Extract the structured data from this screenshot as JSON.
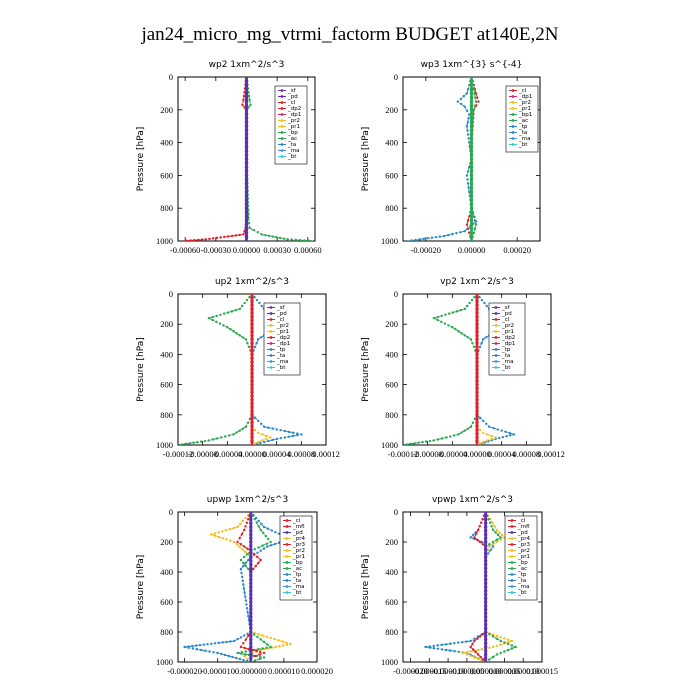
{
  "figure": {
    "title": "jan24_micro_mg_vtrmi_factorm  BUDGET at140E,2N"
  },
  "colors": {
    "sf": "#7d2fa8",
    "pd": "#5a2fb0",
    "cl": "#e0202a",
    "dp2": "#e0202a",
    "dp1": "#d8267a",
    "pr2": "#f0c020",
    "pr1": "#f0c020",
    "bp1": "#28a850",
    "ac": "#28a850",
    "bp": "#28a850",
    "tp": "#2a88c8",
    "ta": "#2a88c8",
    "ma": "#4a90e0",
    "bt": "#38c8d8",
    "mfl": "#e0202a",
    "pr4": "#f0c020",
    "pr3": "#e0202a"
  },
  "chart_data": [
    {
      "type": "line",
      "title": "wp2   1xm^2/s^3",
      "ylabel": "Pressure  [hPa]",
      "ylim": [
        1000,
        0
      ],
      "xlim": [
        -0.00067,
        0.00067
      ],
      "xticks": [
        -0.0006,
        -0.0003,
        0.0,
        0.0003,
        0.0006
      ],
      "xticklabels": [
        "-0.00060",
        "-0.00030",
        "0.00000",
        "0.00030",
        "0.00060"
      ],
      "yticks": [
        0,
        200,
        400,
        600,
        800,
        1000
      ],
      "legend": [
        "_sf",
        "_pd",
        "_cl",
        "_dp2",
        "_dp1",
        "_pr2",
        "_pr1",
        "_bp",
        "_ac",
        "_ta",
        "_ma",
        "_bt"
      ],
      "series": [
        {
          "name": "_sf",
          "key": "sf",
          "x": [
            0,
            0,
            0,
            0,
            0,
            0,
            0
          ],
          "y": [
            0,
            150,
            300,
            500,
            700,
            900,
            1000
          ]
        },
        {
          "name": "_cl",
          "key": "cl",
          "x": [
            0,
            -3e-05,
            -4e-05,
            0,
            0,
            0,
            -1e-05,
            -3e-05,
            -0.0004,
            -0.00062
          ],
          "y": [
            0,
            140,
            170,
            200,
            500,
            860,
            920,
            960,
            990,
            1000
          ]
        },
        {
          "name": "_ac",
          "key": "ac",
          "x": [
            0,
            3e-05,
            4e-05,
            0,
            0,
            2e-05,
            3e-05,
            0.00015,
            0.0004,
            0.00065
          ],
          "y": [
            0,
            140,
            170,
            200,
            500,
            860,
            920,
            960,
            990,
            1000
          ]
        },
        {
          "name": "_pd",
          "key": "pd",
          "x": [
            0,
            0,
            0,
            0,
            0,
            0,
            0
          ],
          "y": [
            0,
            150,
            300,
            500,
            700,
            900,
            1000
          ]
        }
      ]
    },
    {
      "type": "line",
      "title": "wp3   1xm^{3} s^{-4}",
      "ylabel": "Pressure  [hPa]",
      "ylim": [
        1000,
        0
      ],
      "xlim": [
        -0.0003,
        0.0003
      ],
      "xticks": [
        -0.0002,
        0.0,
        0.0002
      ],
      "xticklabels": [
        "-0.00020",
        "0.00000",
        "0.00020"
      ],
      "yticks": [
        0,
        200,
        400,
        600,
        800,
        1000
      ],
      "legend": [
        "_cl",
        "_dp1",
        "_pr2",
        "_pr1",
        "_bp1",
        "_ac",
        "_tp",
        "_ta",
        "_ma",
        "_bt"
      ],
      "series": [
        {
          "name": "_tp",
          "key": "tp",
          "x": [
            0,
            -2e-05,
            -6e-05,
            -3e-05,
            -1e-05,
            -2e-05,
            -1e-05,
            0,
            -2e-05,
            0,
            2e-05,
            -3e-05,
            -0.00012,
            -0.00028
          ],
          "y": [
            0,
            100,
            150,
            180,
            230,
            300,
            400,
            500,
            600,
            800,
            880,
            940,
            970,
            1000
          ]
        },
        {
          "name": "_cl",
          "key": "cl",
          "x": [
            0,
            3e-05,
            1e-05,
            0,
            0,
            -2e-05,
            0
          ],
          "y": [
            0,
            150,
            200,
            400,
            800,
            900,
            1000
          ]
        },
        {
          "name": "_ac",
          "key": "ac",
          "x": [
            0,
            2e-05,
            1e-05,
            0,
            0,
            2e-05,
            0
          ],
          "y": [
            0,
            150,
            200,
            400,
            800,
            900,
            1000
          ]
        },
        {
          "name": "_bp1",
          "key": "bp1",
          "x": [
            0,
            0,
            0,
            0,
            0,
            0,
            0
          ],
          "y": [
            0,
            150,
            300,
            500,
            700,
            900,
            1000
          ]
        }
      ]
    },
    {
      "type": "line",
      "title": "up2   1xm^2/s^3",
      "ylabel": "Pressure  [hPa]",
      "ylim": [
        1000,
        0
      ],
      "xlim": [
        -0.00012,
        0.00012
      ],
      "xticks": [
        -0.00012,
        -8e-05,
        -4e-05,
        0.0,
        4e-05,
        8e-05,
        0.00012
      ],
      "xticklabels": [
        "-0.00012",
        "-0.00008",
        "-0.00004",
        "0.00000",
        "0.00004",
        "0.00008",
        "0.00012"
      ],
      "yticks": [
        0,
        200,
        400,
        600,
        800,
        1000
      ],
      "legend": [
        "_sf",
        "_pd",
        "_cl",
        "_pr2",
        "_pr1",
        "_dp2",
        "_dp1",
        "_tp",
        "_ta",
        "_ma",
        "_bt"
      ],
      "series": [
        {
          "name": "_dp2",
          "key": "ac",
          "x": [
            0,
            -2e-05,
            -7e-05,
            -4e-05,
            -1e-05,
            0,
            0,
            -1e-05,
            -3e-05,
            -7e-05,
            -0.00012
          ],
          "y": [
            0,
            100,
            160,
            220,
            300,
            400,
            800,
            880,
            930,
            970,
            1000
          ]
        },
        {
          "name": "_tp",
          "key": "tp",
          "x": [
            0,
            2e-05,
            6e-05,
            4e-05,
            1e-05,
            0,
            0,
            2e-05,
            8e-05,
            4e-05,
            0
          ],
          "y": [
            0,
            100,
            160,
            220,
            300,
            400,
            800,
            880,
            930,
            960,
            1000
          ]
        },
        {
          "name": "_pr1",
          "key": "pr1",
          "x": [
            0,
            0,
            0,
            0,
            1e-05,
            3e-05,
            1e-05,
            0
          ],
          "y": [
            0,
            300,
            600,
            880,
            920,
            950,
            980,
            1000
          ]
        },
        {
          "name": "_cl",
          "key": "cl",
          "x": [
            0,
            0,
            0,
            0,
            0,
            0,
            0
          ],
          "y": [
            0,
            150,
            300,
            500,
            700,
            900,
            1000
          ]
        }
      ]
    },
    {
      "type": "line",
      "title": "vp2   1xm^2/s^3",
      "ylabel": "Pressure  [hPa]",
      "ylim": [
        1000,
        0
      ],
      "xlim": [
        -0.00012,
        0.00012
      ],
      "xticks": [
        -0.00012,
        -8e-05,
        -4e-05,
        0.0,
        4e-05,
        8e-05,
        0.00012
      ],
      "xticklabels": [
        "-0.00012",
        "-0.00008",
        "-0.00004",
        "0.00000",
        "0.00004",
        "0.00008",
        "0.00012"
      ],
      "yticks": [
        0,
        200,
        400,
        600,
        800,
        1000
      ],
      "legend": [
        "_sf",
        "_pd",
        "_cl",
        "_pr2",
        "_pr1",
        "_dp2",
        "_dp1",
        "_tp",
        "_ta",
        "_ma",
        "_bt"
      ],
      "series": [
        {
          "name": "_dp2",
          "key": "ac",
          "x": [
            0,
            -2e-05,
            -7e-05,
            -4e-05,
            -1e-05,
            0,
            0,
            -1e-05,
            -3e-05,
            -7e-05,
            -0.00012
          ],
          "y": [
            0,
            100,
            160,
            220,
            300,
            400,
            800,
            880,
            930,
            970,
            1000
          ]
        },
        {
          "name": "_tp",
          "key": "tp",
          "x": [
            0,
            2e-05,
            6e-05,
            4e-05,
            1e-05,
            0,
            0,
            2e-05,
            6e-05,
            3e-05,
            0
          ],
          "y": [
            0,
            100,
            160,
            220,
            300,
            400,
            800,
            880,
            930,
            960,
            1000
          ]
        },
        {
          "name": "_pr1",
          "key": "pr1",
          "x": [
            0,
            0,
            0,
            0,
            1e-05,
            3e-05,
            1e-05,
            0
          ],
          "y": [
            0,
            300,
            600,
            880,
            920,
            950,
            980,
            1000
          ]
        },
        {
          "name": "_cl",
          "key": "cl",
          "x": [
            0,
            0,
            0,
            0,
            0,
            0,
            0
          ],
          "y": [
            0,
            150,
            300,
            500,
            700,
            900,
            1000
          ]
        }
      ]
    },
    {
      "type": "line",
      "title": "upwp   1xm^2/s^3",
      "ylabel": "Pressure  [hPa]",
      "ylim": [
        1000,
        0
      ],
      "xlim": [
        -2.2e-05,
        2e-05
      ],
      "xticks": [
        -2e-05,
        -1e-05,
        0.0,
        1e-05,
        2e-05
      ],
      "xticklabels": [
        "-0.000020",
        "-0.000010",
        "0.000000",
        "0.000010",
        "0.000020"
      ],
      "yticks": [
        0,
        200,
        400,
        600,
        800,
        1000
      ],
      "legend": [
        "_cl",
        "_mfl",
        "_pd",
        "_pr4",
        "_pr3",
        "_pr2",
        "_pr1",
        "_bp",
        "_ac",
        "_tp",
        "_ta",
        "_ma",
        "_bt"
      ],
      "series": [
        {
          "name": "_pr1",
          "key": "pr1",
          "x": [
            0,
            -4e-06,
            -1.2e-05,
            -5e-06,
            0,
            0,
            0,
            1.2e-05,
            3e-06,
            -2e-06,
            0
          ],
          "y": [
            0,
            100,
            150,
            200,
            300,
            500,
            800,
            880,
            920,
            960,
            1000
          ]
        },
        {
          "name": "_tp",
          "key": "tp",
          "x": [
            0,
            4e-06,
            1.2e-05,
            5e-06,
            0,
            -3e-06,
            0,
            -5e-06,
            -2e-05,
            -1e-05,
            0
          ],
          "y": [
            0,
            100,
            180,
            230,
            300,
            380,
            800,
            860,
            900,
            940,
            1000
          ]
        },
        {
          "name": "_ac",
          "key": "ac",
          "x": [
            0,
            3e-06,
            6e-06,
            0,
            -3e-06,
            0,
            0,
            6e-06,
            -4e-06,
            4e-06,
            0
          ],
          "y": [
            0,
            120,
            200,
            260,
            320,
            400,
            800,
            900,
            940,
            970,
            1000
          ]
        },
        {
          "name": "_cl",
          "key": "cl",
          "x": [
            0,
            -2e-06,
            -4e-06,
            0,
            3e-06,
            0,
            0,
            -3e-06,
            4e-06,
            0,
            0
          ],
          "y": [
            0,
            120,
            200,
            260,
            320,
            400,
            800,
            900,
            940,
            970,
            1000
          ]
        },
        {
          "name": "_pd",
          "key": "pd",
          "x": [
            0,
            0,
            0,
            0,
            0,
            0,
            0
          ],
          "y": [
            0,
            150,
            300,
            500,
            700,
            900,
            1000
          ]
        }
      ]
    },
    {
      "type": "line",
      "title": "vpwp   1xm^2/s^3",
      "ylabel": "Pressure  [hPa]",
      "ylim": [
        1000,
        0
      ],
      "xlim": [
        -2.2e-05,
        1.5e-05
      ],
      "xticks": [
        -2e-05,
        -1.5e-05,
        -1e-05,
        -5e-06,
        0.0,
        5e-06,
        1e-05,
        1.5e-05
      ],
      "xticklabels": [
        "-0.000020",
        "-0.000015",
        "-0.000010",
        "-0.000005",
        "0.000000",
        "0.000005",
        "0.000010",
        "0.000015"
      ],
      "yticks": [
        0,
        200,
        400,
        600,
        800,
        1000
      ],
      "legend": [
        "_cl",
        "_mfl",
        "_pd",
        "_pr4",
        "_pr3",
        "_pr2",
        "_pr1",
        "_bp",
        "_ac",
        "_tp",
        "_ta",
        "_ma",
        "_bt"
      ],
      "series": [
        {
          "name": "_tp",
          "key": "tp",
          "x": [
            0,
            -2e-06,
            -4e-06,
            2e-06,
            0,
            0,
            0,
            -4e-06,
            -1.6e-05,
            -5e-06,
            0
          ],
          "y": [
            0,
            120,
            170,
            230,
            300,
            500,
            800,
            860,
            900,
            940,
            1000
          ]
        },
        {
          "name": "_pr1",
          "key": "pr1",
          "x": [
            0,
            3e-06,
            5e-06,
            1e-06,
            0,
            0,
            0,
            7e-06,
            2e-06,
            -6e-06,
            0
          ],
          "y": [
            0,
            120,
            170,
            230,
            300,
            500,
            800,
            860,
            900,
            940,
            1000
          ]
        },
        {
          "name": "_ac",
          "key": "ac",
          "x": [
            0,
            2e-06,
            4e-06,
            0,
            0,
            0,
            0,
            4e-06,
            8e-06,
            3e-06,
            0
          ],
          "y": [
            0,
            120,
            170,
            230,
            300,
            500,
            800,
            860,
            900,
            950,
            1000
          ]
        },
        {
          "name": "_cl",
          "key": "cl",
          "x": [
            0,
            -2e-06,
            -3e-06,
            0,
            0,
            0,
            0,
            -3e-06,
            -4e-06,
            -2e-06,
            0
          ],
          "y": [
            0,
            120,
            170,
            230,
            300,
            500,
            800,
            860,
            900,
            950,
            1000
          ]
        },
        {
          "name": "_pd",
          "key": "pd",
          "x": [
            0,
            0,
            0,
            0,
            0,
            0,
            0
          ],
          "y": [
            0,
            150,
            300,
            500,
            700,
            900,
            1000
          ]
        }
      ]
    }
  ]
}
